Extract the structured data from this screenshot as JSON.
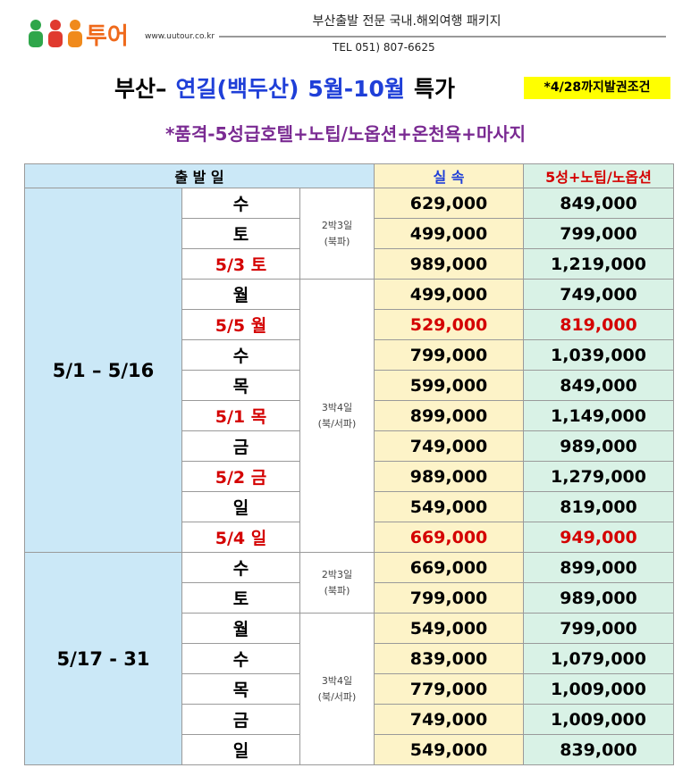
{
  "header": {
    "logo": "투어",
    "url": "www.uutour.co.kr",
    "tagline": "부산출발 전문 국내.해외여행 패키지",
    "tel": "TEL 051) 807-6625"
  },
  "title": {
    "parts": [
      {
        "text": "부산–",
        "color": "#000000"
      },
      {
        "text": "연길(백두산)",
        "color": "#1f3fd8"
      },
      {
        "text": "5월-10월",
        "color": "#1f3fd8"
      },
      {
        "text": "특가",
        "color": "#000000"
      }
    ],
    "badge": "*4/28까지발권조건"
  },
  "subtitle": "*품격-5성급호텔+노팁/노옵션+온천욕+마사지",
  "table": {
    "columns": [
      "출 발 일",
      "실 속",
      "5성+노팁/노옵션"
    ],
    "groups": [
      {
        "period": "5/1 – 5/16",
        "packages": [
          {
            "duration": "2박3일",
            "route": "(북파)",
            "rows": [
              {
                "day": "수",
                "basic": "629,000",
                "premium": "849,000"
              },
              {
                "day": "토",
                "basic": "499,000",
                "premium": "799,000"
              },
              {
                "day": "5/3 토",
                "basic": "989,000",
                "premium": "1,219,000",
                "day_color": "#d40000"
              }
            ]
          },
          {
            "duration": "3박4일",
            "route": "(북/서파)",
            "rows": [
              {
                "day": "월",
                "basic": "499,000",
                "premium": "749,000"
              },
              {
                "day": "5/5 월",
                "basic": "529,000",
                "premium": "819,000",
                "day_color": "#d40000",
                "price_color": "#d40000"
              },
              {
                "day": "수",
                "basic": "799,000",
                "premium": "1,039,000"
              },
              {
                "day": "목",
                "basic": "599,000",
                "premium": "849,000"
              },
              {
                "day": "5/1 목",
                "basic": "899,000",
                "premium": "1,149,000",
                "day_color": "#d40000"
              },
              {
                "day": "금",
                "basic": "749,000",
                "premium": "989,000"
              },
              {
                "day": "5/2 금",
                "basic": "989,000",
                "premium": "1,279,000",
                "day_color": "#d40000"
              },
              {
                "day": "일",
                "basic": "549,000",
                "premium": "819,000"
              },
              {
                "day": "5/4 일",
                "basic": "669,000",
                "premium": "949,000",
                "day_color": "#d40000",
                "price_color": "#d40000"
              }
            ]
          }
        ]
      },
      {
        "period": "5/17 - 31",
        "packages": [
          {
            "duration": "2박3일",
            "route": "(북파)",
            "rows": [
              {
                "day": "수",
                "basic": "669,000",
                "premium": "899,000"
              },
              {
                "day": "토",
                "basic": "799,000",
                "premium": "989,000"
              }
            ]
          },
          {
            "duration": "3박4일",
            "route": "(북/서파)",
            "rows": [
              {
                "day": "월",
                "basic": "549,000",
                "premium": "799,000"
              },
              {
                "day": "수",
                "basic": "839,000",
                "premium": "1,079,000"
              },
              {
                "day": "목",
                "basic": "779,000",
                "premium": "1,009,000"
              },
              {
                "day": "금",
                "basic": "749,000",
                "premium": "1,009,000"
              },
              {
                "day": "일",
                "basic": "549,000",
                "premium": "839,000"
              }
            ]
          }
        ]
      }
    ]
  }
}
